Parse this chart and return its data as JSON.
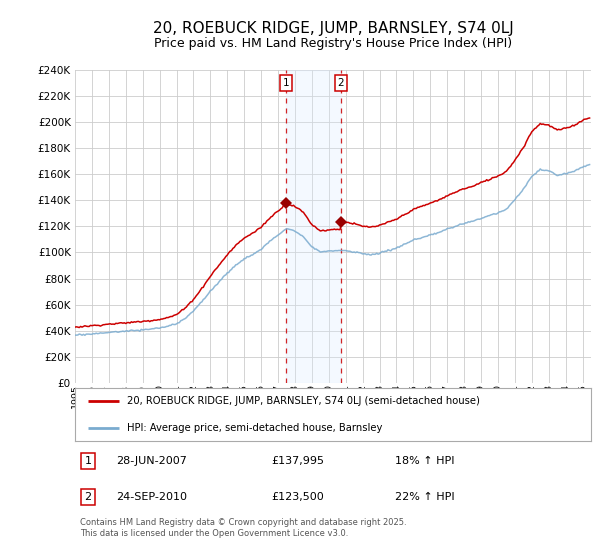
{
  "title": "20, ROEBUCK RIDGE, JUMP, BARNSLEY, S74 0LJ",
  "subtitle": "Price paid vs. HM Land Registry's House Price Index (HPI)",
  "title_fontsize": 11,
  "subtitle_fontsize": 9,
  "red_line_label": "20, ROEBUCK RIDGE, JUMP, BARNSLEY, S74 0LJ (semi-detached house)",
  "blue_line_label": "HPI: Average price, semi-detached house, Barnsley",
  "sale1_label": "1",
  "sale1_date_str": "28-JUN-2007",
  "sale1_price": 137995,
  "sale1_price_str": "£137,995",
  "sale1_hpi_str": "18% ↑ HPI",
  "sale1_t": 2007.4932,
  "sale2_label": "2",
  "sale2_date_str": "24-SEP-2010",
  "sale2_price": 123500,
  "sale2_price_str": "£123,500",
  "sale2_hpi_str": "22% ↑ HPI",
  "sale2_t": 2010.726,
  "red_color": "#cc0000",
  "blue_color": "#7aabcf",
  "shade_color": "#ddeeff",
  "dashed_color": "#cc0000",
  "marker_color": "#990000",
  "grid_color": "#cccccc",
  "bg_color": "#ffffff",
  "ylim_max": 240000,
  "ytick_step": 20000,
  "xstart": 1995.0,
  "xend": 2025.5,
  "footer_line1": "Contains HM Land Registry data © Crown copyright and database right 2025.",
  "footer_line2": "This data is licensed under the Open Government Licence v3.0."
}
